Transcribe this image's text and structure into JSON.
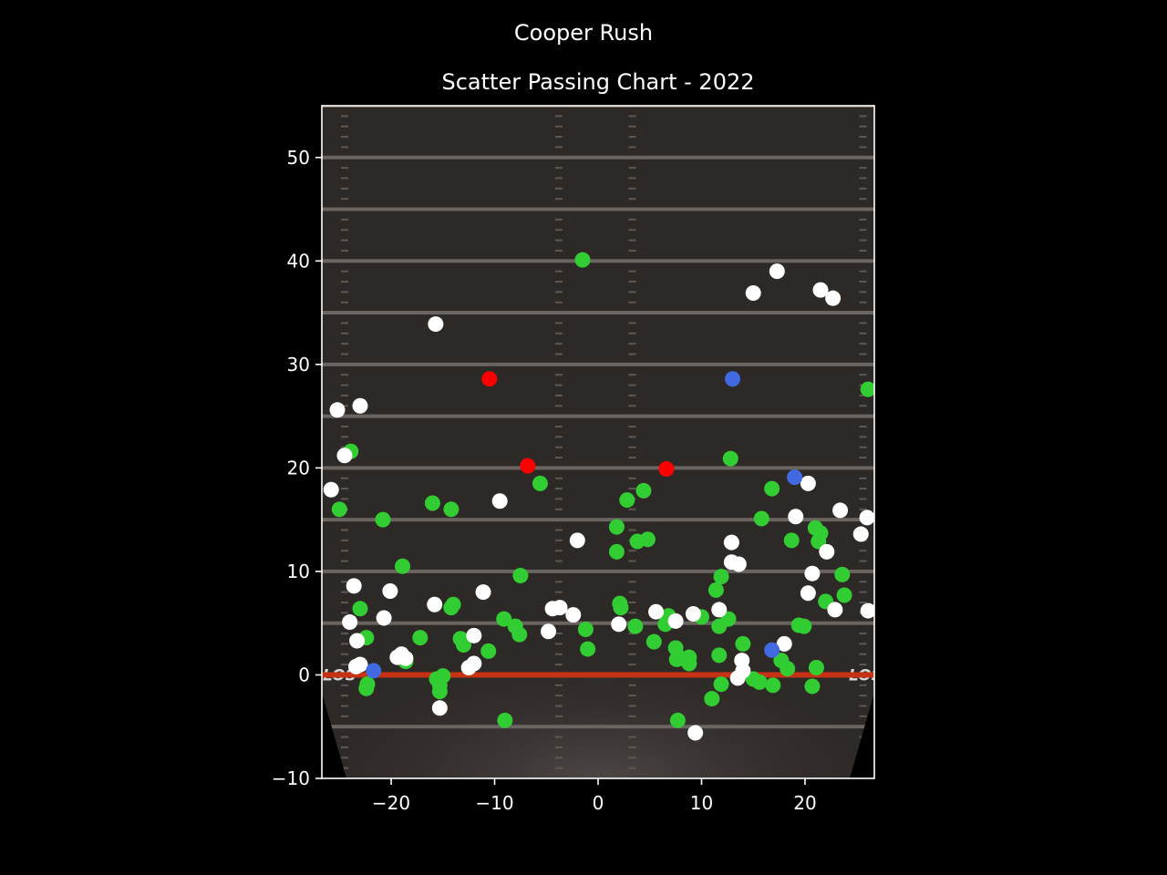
{
  "chart_data": {
    "type": "scatter",
    "title": "Cooper Rush",
    "subtitle": "Scatter Passing Chart - 2022",
    "xlabel": "",
    "ylabel": "",
    "xlim": [
      -26.7,
      26.7
    ],
    "ylim": [
      -10,
      55
    ],
    "x_ticks": [
      -20,
      -10,
      0,
      10,
      20
    ],
    "x_tick_labels": [
      "−20",
      "−10",
      "0",
      "10",
      "20"
    ],
    "y_ticks": [
      -10,
      0,
      10,
      20,
      30,
      40,
      50
    ],
    "y_tick_labels": [
      "−10",
      "0",
      "10",
      "20",
      "30",
      "40",
      "50"
    ],
    "grid": false,
    "legend": "none",
    "background": "football field image (yard lines every 5 yards, line of scrimmage at 0)",
    "field_overlay_text": [
      "LOS",
      "LOS"
    ],
    "colors": {
      "figure_bg": "#000000",
      "field": "#2d2927",
      "yard_line": "#6b6561",
      "line_of_scrimmage": "#c83214",
      "axes": "#ffffff",
      "text": "#ffffff"
    },
    "series": [
      {
        "color": "#32cd32",
        "points": [
          [
            -1.5,
            40.1
          ],
          [
            26.1,
            27.6
          ],
          [
            -23.9,
            21.6
          ],
          [
            -5.6,
            18.5
          ],
          [
            -16.0,
            16.6
          ],
          [
            -14.2,
            16.0
          ],
          [
            -25.0,
            16.0
          ],
          [
            -20.8,
            15.0
          ],
          [
            -18.9,
            10.5
          ],
          [
            -7.5,
            9.6
          ],
          [
            -23.0,
            6.4
          ],
          [
            -14.2,
            6.5
          ],
          [
            -14.0,
            6.8
          ],
          [
            -22.4,
            3.6
          ],
          [
            -17.2,
            3.6
          ],
          [
            -13.3,
            3.5
          ],
          [
            -13.0,
            2.9
          ],
          [
            -10.6,
            2.3
          ],
          [
            -18.6,
            1.3
          ],
          [
            -23.0,
            1.0
          ],
          [
            -15.6,
            -0.4
          ],
          [
            -15.0,
            -0.1
          ],
          [
            -15.3,
            -1.0
          ],
          [
            -15.3,
            -1.6
          ],
          [
            -22.3,
            -0.9
          ],
          [
            -22.4,
            -1.3
          ],
          [
            -9.1,
            5.4
          ],
          [
            -8.0,
            4.7
          ],
          [
            -7.6,
            3.9
          ],
          [
            -1.2,
            4.4
          ],
          [
            -1.0,
            2.5
          ],
          [
            -9.0,
            -4.4
          ],
          [
            2.8,
            16.9
          ],
          [
            4.4,
            17.8
          ],
          [
            1.8,
            14.3
          ],
          [
            1.8,
            11.9
          ],
          [
            3.8,
            12.9
          ],
          [
            4.8,
            13.1
          ],
          [
            2.2,
            6.5
          ],
          [
            2.1,
            6.9
          ],
          [
            3.6,
            4.7
          ],
          [
            5.4,
            3.2
          ],
          [
            6.5,
            4.9
          ],
          [
            6.8,
            5.7
          ],
          [
            7.5,
            2.6
          ],
          [
            8.0,
            1.6
          ],
          [
            7.6,
            1.5
          ],
          [
            8.8,
            1.7
          ],
          [
            8.8,
            1.1
          ],
          [
            10.0,
            5.6
          ],
          [
            7.7,
            -4.4
          ],
          [
            11.0,
            -2.3
          ],
          [
            12.8,
            20.9
          ],
          [
            11.9,
            9.5
          ],
          [
            11.4,
            8.2
          ],
          [
            12.6,
            5.4
          ],
          [
            11.7,
            4.7
          ],
          [
            11.7,
            1.9
          ],
          [
            14.0,
            3.0
          ],
          [
            11.9,
            -0.9
          ],
          [
            15.0,
            -0.4
          ],
          [
            15.6,
            -0.7
          ],
          [
            16.9,
            -1.0
          ],
          [
            16.8,
            18.0
          ],
          [
            15.8,
            15.1
          ],
          [
            18.7,
            13.0
          ],
          [
            21.0,
            14.2
          ],
          [
            21.5,
            13.7
          ],
          [
            21.3,
            12.9
          ],
          [
            22.0,
            7.1
          ],
          [
            23.6,
            9.7
          ],
          [
            23.8,
            7.7
          ],
          [
            19.4,
            4.8
          ],
          [
            19.9,
            4.7
          ],
          [
            17.7,
            1.4
          ],
          [
            18.3,
            0.6
          ],
          [
            21.1,
            0.7
          ],
          [
            20.7,
            -1.1
          ]
        ]
      },
      {
        "color": "#ffffff",
        "points": [
          [
            -15.7,
            33.9
          ],
          [
            -25.2,
            25.6
          ],
          [
            -23.0,
            26.0
          ],
          [
            -24.5,
            21.2
          ],
          [
            -25.8,
            17.9
          ],
          [
            -9.5,
            16.8
          ],
          [
            -23.6,
            8.6
          ],
          [
            -20.1,
            8.1
          ],
          [
            -24.0,
            5.1
          ],
          [
            -20.7,
            5.5
          ],
          [
            -23.3,
            3.3
          ],
          [
            -15.8,
            6.8
          ],
          [
            -19.4,
            1.7
          ],
          [
            -19.0,
            2.0
          ],
          [
            -18.6,
            1.6
          ],
          [
            -23.4,
            0.8
          ],
          [
            -23.0,
            1.0
          ],
          [
            -12.0,
            3.8
          ],
          [
            -12.5,
            0.7
          ],
          [
            -12.0,
            1.1
          ],
          [
            -11.1,
            8.0
          ],
          [
            -15.3,
            -3.2
          ],
          [
            -2.0,
            13.0
          ],
          [
            -4.4,
            6.4
          ],
          [
            -3.7,
            6.5
          ],
          [
            -2.4,
            5.8
          ],
          [
            -4.8,
            4.2
          ],
          [
            2.0,
            4.9
          ],
          [
            5.6,
            6.1
          ],
          [
            7.5,
            5.2
          ],
          [
            9.2,
            5.9
          ],
          [
            9.4,
            -5.6
          ],
          [
            17.3,
            39.0
          ],
          [
            15.0,
            36.9
          ],
          [
            21.5,
            37.2
          ],
          [
            22.7,
            36.4
          ],
          [
            20.3,
            18.5
          ],
          [
            19.1,
            15.3
          ],
          [
            23.4,
            15.9
          ],
          [
            26.0,
            15.2
          ],
          [
            25.4,
            13.6
          ],
          [
            12.9,
            12.8
          ],
          [
            22.1,
            11.9
          ],
          [
            12.9,
            10.9
          ],
          [
            13.6,
            10.7
          ],
          [
            20.7,
            9.8
          ],
          [
            20.3,
            7.9
          ],
          [
            22.9,
            6.3
          ],
          [
            26.1,
            6.2
          ],
          [
            11.7,
            6.3
          ],
          [
            18.0,
            3.0
          ],
          [
            13.9,
            1.4
          ],
          [
            14.0,
            0.4
          ],
          [
            13.5,
            -0.3
          ]
        ]
      },
      {
        "color": "#ff0000",
        "points": [
          [
            -10.5,
            28.6
          ],
          [
            -6.8,
            20.2
          ],
          [
            6.6,
            19.9
          ]
        ]
      },
      {
        "color": "#4169e1",
        "points": [
          [
            13.0,
            28.6
          ],
          [
            19.0,
            19.1
          ],
          [
            -21.7,
            0.4
          ],
          [
            16.8,
            2.4
          ]
        ]
      }
    ]
  }
}
